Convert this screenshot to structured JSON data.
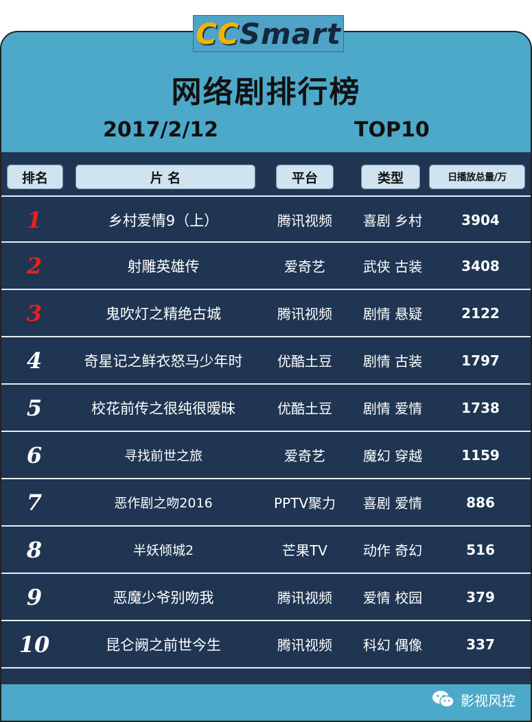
{
  "logo": {
    "part1": "CC",
    "part2": "Smart"
  },
  "title": "网络剧排行榜",
  "date": "2017/2/12",
  "top_label": "TOP10",
  "headers": {
    "rank": "排名",
    "title": "片 名",
    "platform": "平台",
    "type": "类型",
    "views": "日播放总量/万"
  },
  "rows": [
    {
      "rank": "1",
      "title": "乡村爱情9（上）",
      "platform": "腾讯视频",
      "type": "喜剧 乡村",
      "views": "3904"
    },
    {
      "rank": "2",
      "title": "射雕英雄传",
      "platform": "爱奇艺",
      "type": "武侠 古装",
      "views": "3408"
    },
    {
      "rank": "3",
      "title": "鬼吹灯之精绝古城",
      "platform": "腾讯视频",
      "type": "剧情 悬疑",
      "views": "2122"
    },
    {
      "rank": "4",
      "title": "奇星记之鲜衣怒马少年时",
      "platform": "优酷土豆",
      "type": "剧情 古装",
      "views": "1797"
    },
    {
      "rank": "5",
      "title": "校花前传之很纯很暧昧",
      "platform": "优酷土豆",
      "type": "剧情 爱情",
      "views": "1738"
    },
    {
      "rank": "6",
      "title": "寻找前世之旅",
      "platform": "爱奇艺",
      "type": "魔幻 穿越",
      "views": "1159"
    },
    {
      "rank": "7",
      "title": "恶作剧之吻2016",
      "platform": "PPTV聚力",
      "type": "喜剧 爱情",
      "views": "886"
    },
    {
      "rank": "8",
      "title": "半妖倾城2",
      "platform": "芒果TV",
      "type": "动作 奇幻",
      "views": "516"
    },
    {
      "rank": "9",
      "title": "恶魔少爷别吻我",
      "platform": "腾讯视频",
      "type": "爱情 校园",
      "views": "379"
    },
    {
      "rank": "10",
      "title": "昆仑阙之前世今生",
      "platform": "腾讯视频",
      "type": "科幻 偶像",
      "views": "337"
    }
  ],
  "colors": {
    "top3_rank": "#e8201e",
    "board_bg": "#1f3552",
    "frame_bg": "#4da9c9"
  },
  "watermark": {
    "icon": "wechat-icon",
    "text": "影视风控"
  }
}
